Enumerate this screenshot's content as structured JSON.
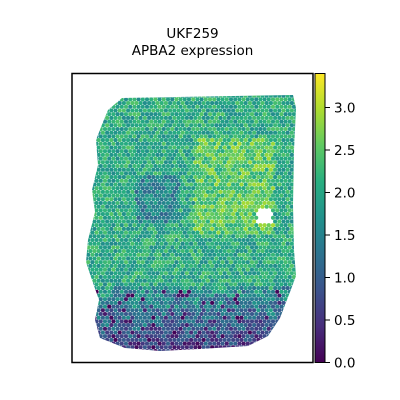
{
  "chart_data": {
    "type": "scatter",
    "title": "UKF259",
    "subtitle": "APBA2 expression",
    "xlabel": "",
    "ylabel": "",
    "colorbar": {
      "range": [
        0.0,
        3.4
      ],
      "ticks": [
        0.0,
        0.5,
        1.0,
        1.5,
        2.0,
        2.5,
        3.0
      ],
      "tick_labels": [
        "0.0",
        "0.5",
        "1.0",
        "1.5",
        "2.0",
        "2.5",
        "3.0"
      ],
      "colormap": "viridis"
    },
    "axes_frame": true,
    "axes_ticks": false,
    "typical_value": 2.0,
    "value_range_observed": [
      0.0,
      3.4
    ]
  }
}
